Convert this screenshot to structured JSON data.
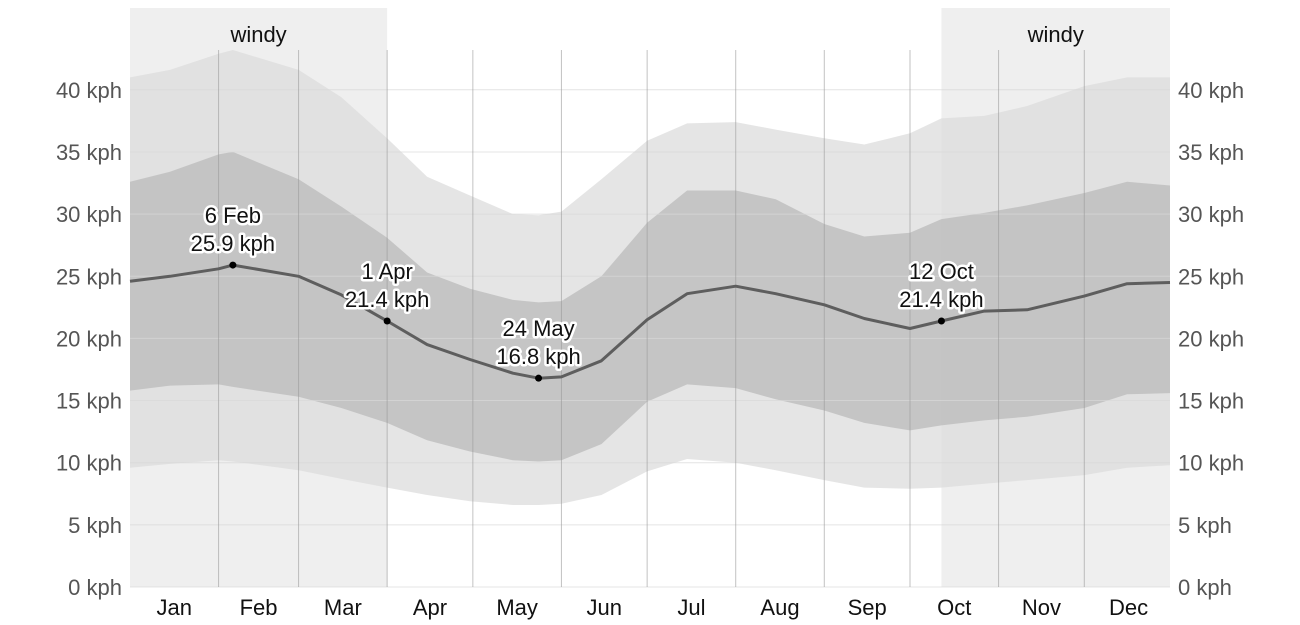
{
  "chart_data": {
    "type": "area",
    "title": "",
    "xlabel": "",
    "ylabel": "",
    "ylim": [
      0,
      45
    ],
    "y_ticks": [
      {
        "value": 0,
        "label": "0 kph"
      },
      {
        "value": 5,
        "label": "5 kph"
      },
      {
        "value": 10,
        "label": "10 kph"
      },
      {
        "value": 15,
        "label": "15 kph"
      },
      {
        "value": 20,
        "label": "20 kph"
      },
      {
        "value": 25,
        "label": "25 kph"
      },
      {
        "value": 30,
        "label": "30 kph"
      },
      {
        "value": 35,
        "label": "35 kph"
      },
      {
        "value": 40,
        "label": "40 kph"
      }
    ],
    "months": [
      "Jan",
      "Feb",
      "Mar",
      "Apr",
      "May",
      "Jun",
      "Jul",
      "Aug",
      "Sep",
      "Oct",
      "Nov",
      "Dec"
    ],
    "grid": true,
    "seasons": [
      {
        "label": "windy",
        "start_day": 1,
        "end_day": 91
      },
      {
        "label": "windy",
        "start_day": 285,
        "end_day": 365
      }
    ],
    "x_days": [
      1,
      15,
      32,
      37,
      60,
      75,
      91,
      105,
      120,
      135,
      144,
      152,
      166,
      182,
      196,
      213,
      227,
      244,
      258,
      274,
      285,
      300,
      315,
      335,
      350,
      365
    ],
    "series": [
      {
        "values": [
          24.6,
          25.0,
          25.6,
          25.9,
          25.0,
          23.5,
          21.4,
          19.5,
          18.3,
          17.2,
          16.8,
          16.9,
          18.2,
          21.5,
          23.6,
          24.2,
          23.6,
          22.7,
          21.6,
          20.8,
          21.4,
          22.2,
          22.3,
          23.4,
          24.4,
          24.5
        ]
      }
    ],
    "bands": [
      {
        "role": "p10",
        "values": [
          9.6,
          9.9,
          10.2,
          10.1,
          9.4,
          8.7,
          8.0,
          7.4,
          6.9,
          6.6,
          6.6,
          6.7,
          7.4,
          9.3,
          10.3,
          10.0,
          9.4,
          8.6,
          8.0,
          7.9,
          8.0,
          8.3,
          8.6,
          9.0,
          9.6,
          9.8
        ]
      },
      {
        "role": "p25",
        "values": [
          15.8,
          16.2,
          16.3,
          16.1,
          15.3,
          14.4,
          13.2,
          11.8,
          10.9,
          10.2,
          10.1,
          10.2,
          11.5,
          14.9,
          16.3,
          16.0,
          15.1,
          14.2,
          13.2,
          12.6,
          13.0,
          13.4,
          13.7,
          14.4,
          15.5,
          15.6
        ]
      },
      {
        "role": "p75",
        "values": [
          32.6,
          33.4,
          34.8,
          35.0,
          32.8,
          30.6,
          28.1,
          25.3,
          24.0,
          23.1,
          22.9,
          23.0,
          25.0,
          29.3,
          31.9,
          31.9,
          31.2,
          29.2,
          28.2,
          28.5,
          29.6,
          30.1,
          30.7,
          31.7,
          32.6,
          32.3
        ]
      },
      {
        "role": "p90",
        "values": [
          41.0,
          41.6,
          42.9,
          43.2,
          41.6,
          39.4,
          36.1,
          33.0,
          31.5,
          30.0,
          29.9,
          30.2,
          32.8,
          35.9,
          37.3,
          37.4,
          36.8,
          36.1,
          35.6,
          36.5,
          37.7,
          37.9,
          38.7,
          40.3,
          41.0,
          41.0
        ]
      }
    ],
    "annotations": [
      {
        "day": 37,
        "value": 25.9,
        "date_label": "6 Feb",
        "value_label": "25.9 kph"
      },
      {
        "day": 91,
        "value": 21.4,
        "date_label": "1 Apr",
        "value_label": "21.4 kph"
      },
      {
        "day": 144,
        "value": 16.8,
        "date_label": "24 May",
        "value_label": "16.8 kph"
      },
      {
        "day": 285,
        "value": 21.4,
        "date_label": "12 Oct",
        "value_label": "21.4 kph"
      }
    ],
    "colors": {
      "season_fill": "#efefef",
      "band_outer": "#dcdcdc",
      "band_inner": "#bdbdbd",
      "line": "#5e5e5e",
      "grid": "#d8d8d8"
    }
  }
}
